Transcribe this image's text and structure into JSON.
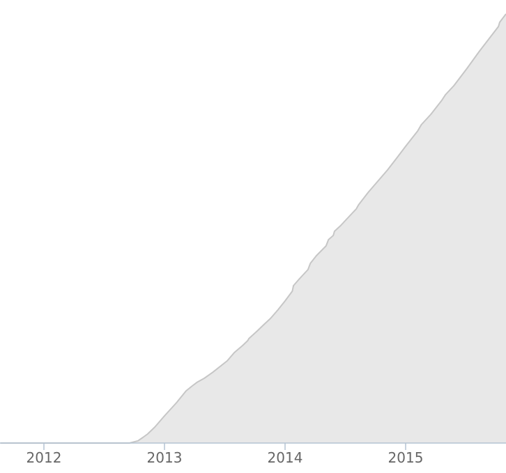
{
  "chart_data": {
    "type": "area",
    "title": "",
    "xlabel": "",
    "ylabel": "",
    "x_tick_labels": [
      "2012",
      "2013",
      "2014",
      "2015"
    ],
    "x_ticks": [
      2012,
      2013,
      2014,
      2015
    ],
    "xlim": [
      2011.64,
      2015.84
    ],
    "y_axis_visible": false,
    "grid": false,
    "legend": "none",
    "fill_color": "#e8e8e8",
    "line_color": "#c6c6c6",
    "axis_color": "#b4c3d2",
    "tick_label_color": "#666666",
    "series": [
      {
        "x": [
          2011.64,
          2012.5,
          2012.71,
          2012.78,
          2012.82,
          2012.86,
          2012.92,
          2013.0,
          2013.1,
          2013.18,
          2013.23,
          2013.27,
          2013.33,
          2013.4,
          2013.45,
          2013.52,
          2013.58,
          2013.65,
          2013.69,
          2013.7,
          2013.77,
          2013.83,
          2013.88,
          2013.94,
          2014.0,
          2014.06,
          2014.07,
          2014.12,
          2014.19,
          2014.21,
          2014.26,
          2014.34,
          2014.36,
          2014.4,
          2014.41,
          2014.46,
          2014.53,
          2014.59,
          2014.61,
          2014.69,
          2014.77,
          2014.85,
          2014.93,
          2015.0,
          2015.1,
          2015.13,
          2015.21,
          2015.3,
          2015.33,
          2015.4,
          2015.51,
          2015.61,
          2015.77,
          2015.78,
          2015.84
        ],
        "y": [
          0,
          0,
          0,
          1.6,
          4,
          6.5,
          11.5,
          19.5,
          29,
          37.5,
          41,
          43.6,
          46.5,
          50.8,
          54.2,
          59,
          65,
          70.2,
          73.5,
          75,
          80.5,
          85.5,
          89.5,
          95.5,
          102,
          109,
          113,
          118,
          124.5,
          129,
          134.5,
          141.5,
          146,
          149,
          152,
          156,
          162.5,
          168,
          171,
          180,
          188,
          196,
          205,
          213,
          224,
          228.5,
          236,
          246,
          250,
          256.5,
          269,
          281,
          299,
          302,
          308
        ]
      }
    ]
  }
}
